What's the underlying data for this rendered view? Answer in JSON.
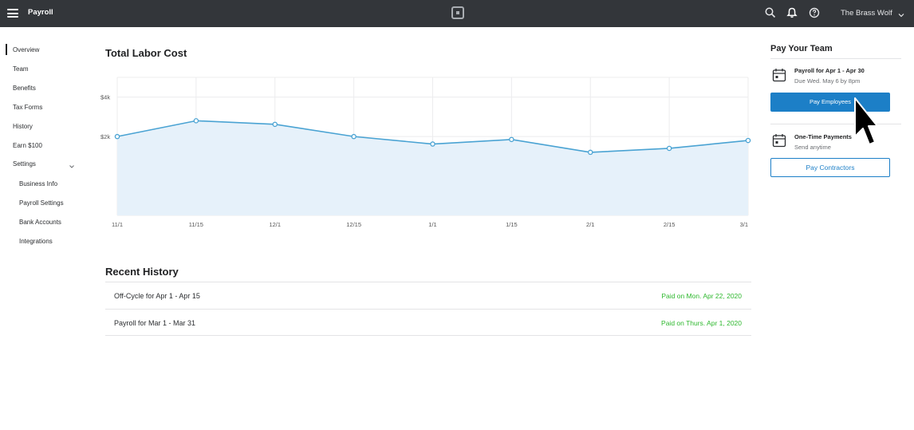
{
  "topbar": {
    "app_title": "Payroll",
    "business_name": "The Brass Wolf",
    "icons": [
      "menu-icon",
      "logo-icon",
      "search-icon",
      "bell-icon",
      "help-icon",
      "chevron-down-icon"
    ]
  },
  "sidebar": {
    "items": [
      {
        "label": "Overview"
      },
      {
        "label": "Team"
      },
      {
        "label": "Benefits"
      },
      {
        "label": "Tax Forms"
      },
      {
        "label": "History"
      },
      {
        "label": "Earn $100"
      },
      {
        "label": "Settings"
      }
    ],
    "settings_items": [
      {
        "label": "Business Info"
      },
      {
        "label": "Payroll Settings"
      },
      {
        "label": "Bank Accounts"
      },
      {
        "label": "Integrations"
      }
    ]
  },
  "labor_cost": {
    "title": "Total Labor Cost"
  },
  "chart_data": {
    "type": "area",
    "title": "Total Labor Cost",
    "xlabel": "",
    "ylabel": "",
    "x": [
      "11/1",
      "11/15",
      "12/1",
      "12/15",
      "1/1",
      "1/15",
      "2/1",
      "2/15",
      "3/1"
    ],
    "series": [
      {
        "values": [
          2000,
          2800,
          2620,
          2000,
          1620,
          1850,
          1200,
          1400,
          1800
        ]
      }
    ],
    "y_ticks": [
      {
        "value": 2000,
        "label": "$2k"
      },
      {
        "value": 4000,
        "label": "$4k"
      }
    ],
    "ylim": [
      -2000,
      5000
    ],
    "grid": true,
    "line_color": "#4aa3d3",
    "fill_color": "#e6f1fa"
  },
  "history": {
    "title": "Recent History",
    "rows": [
      {
        "label": "Off-Cycle for Apr 1 - Apr 15",
        "status": "Paid on Mon. Apr 22, 2020"
      },
      {
        "label": "Payroll for Mar 1 - Mar 31",
        "status": "Paid on Thurs. Apr 1, 2020"
      }
    ]
  },
  "pay_team": {
    "title": "Pay Your Team",
    "payroll_card": {
      "title": "Payroll for Apr 1 - Apr 30",
      "subtitle": "Due Wed. May 6 by 8pm",
      "button": "Pay Employees"
    },
    "one_time_card": {
      "title": "One-Time Payments",
      "subtitle": "Send anytime",
      "button": "Pay Contractors"
    }
  },
  "colors": {
    "topbar": "#33363a",
    "accent": "#1c7fc7",
    "status_paid": "#2eb82e"
  }
}
